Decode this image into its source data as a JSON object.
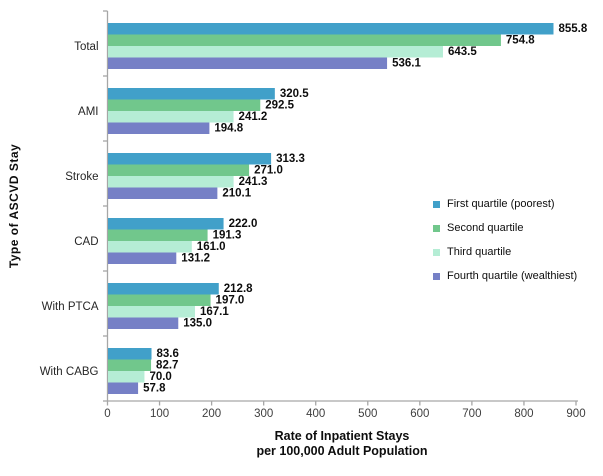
{
  "chart_data": {
    "type": "bar",
    "orientation": "horizontal",
    "title": "",
    "xlabel_line1": "Rate of Inpatient Stays",
    "xlabel_line2": "per 100,000 Adult Population",
    "ylabel": "Type of ASCVD Stay",
    "categories": [
      "Total",
      "AMI",
      "Stroke",
      "CAD",
      "With PTCA",
      "With CABG"
    ],
    "series": [
      {
        "name": "First quartile (poorest)",
        "color": "#41A0C9",
        "values": [
          855.8,
          320.5,
          313.3,
          222.0,
          212.8,
          83.6
        ]
      },
      {
        "name": "Second quartile",
        "color": "#71C78C",
        "values": [
          754.8,
          292.5,
          271.0,
          191.3,
          197.0,
          82.7
        ]
      },
      {
        "name": "Third quartile",
        "color": "#B5EDD5",
        "values": [
          643.5,
          241.2,
          241.3,
          161.0,
          167.1,
          70.0
        ]
      },
      {
        "name": "Fourth quartile (wealthiest)",
        "color": "#7680C6",
        "values": [
          536.1,
          194.8,
          210.1,
          131.2,
          135.0,
          57.8
        ]
      }
    ],
    "xlim": [
      0,
      900
    ],
    "xticks": [
      0,
      100,
      200,
      300,
      400,
      500,
      600,
      700,
      800,
      900
    ],
    "grid": false,
    "legend_position": "right-middle",
    "value_labels": "one_decimal",
    "colors": {
      "axis": "#A6A6A6",
      "tick_label": "#404040",
      "category_label": "#262626",
      "value_label": "#0d0d0d",
      "background": "#ffffff"
    }
  }
}
